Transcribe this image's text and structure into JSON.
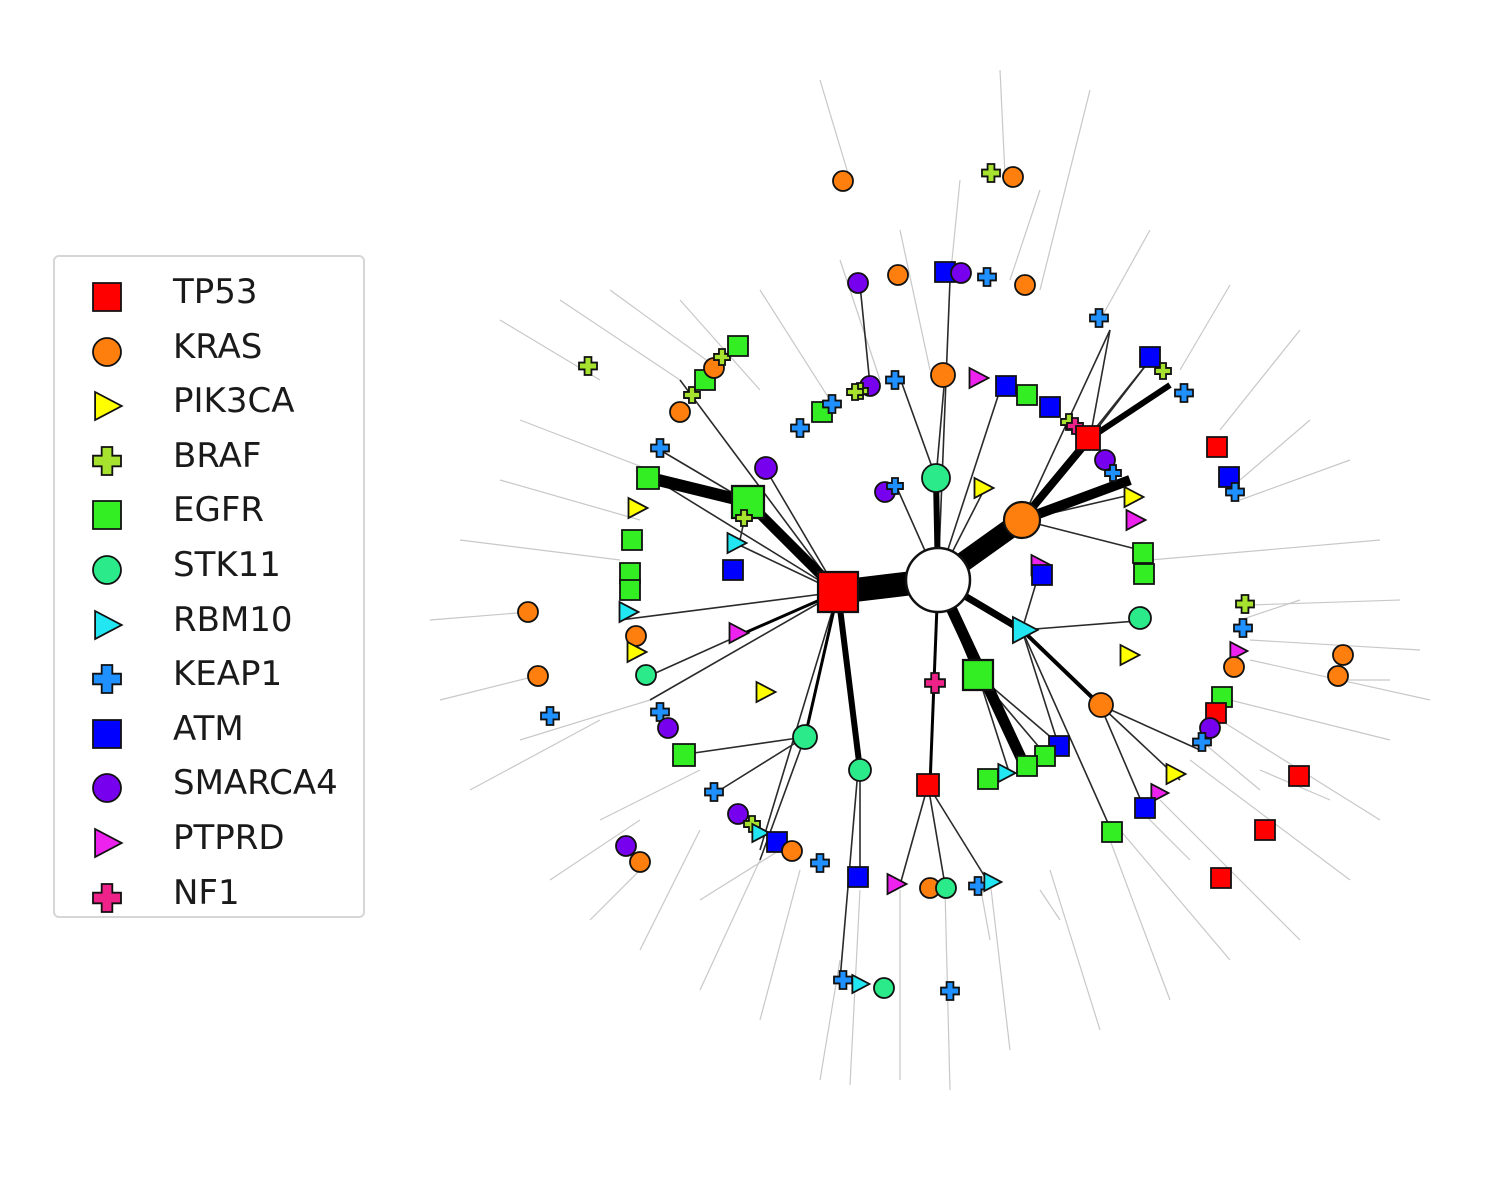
{
  "diagram": {
    "type": "mutation-network",
    "legend": [
      {
        "label": "TP53",
        "shape": "square",
        "color": "#ff0000"
      },
      {
        "label": "KRAS",
        "shape": "circle",
        "color": "#ff7f0e"
      },
      {
        "label": "PIK3CA",
        "shape": "triangle",
        "color": "#ffff00"
      },
      {
        "label": "BRAF",
        "shape": "plus",
        "color": "#a6e22e"
      },
      {
        "label": "EGFR",
        "shape": "square",
        "color": "#33ee22"
      },
      {
        "label": "STK11",
        "shape": "circle",
        "color": "#2bea8a"
      },
      {
        "label": "RBM10",
        "shape": "triangle",
        "color": "#22e6f2"
      },
      {
        "label": "KEAP1",
        "shape": "plus",
        "color": "#1e90ff"
      },
      {
        "label": "ATM",
        "shape": "square",
        "color": "#0000ff"
      },
      {
        "label": "SMARCA4",
        "shape": "circle",
        "color": "#7700ee"
      },
      {
        "label": "PTPRD",
        "shape": "triangle",
        "color": "#ee22ee"
      },
      {
        "label": "NF1",
        "shape": "plus",
        "color": "#ee2288"
      }
    ]
  }
}
